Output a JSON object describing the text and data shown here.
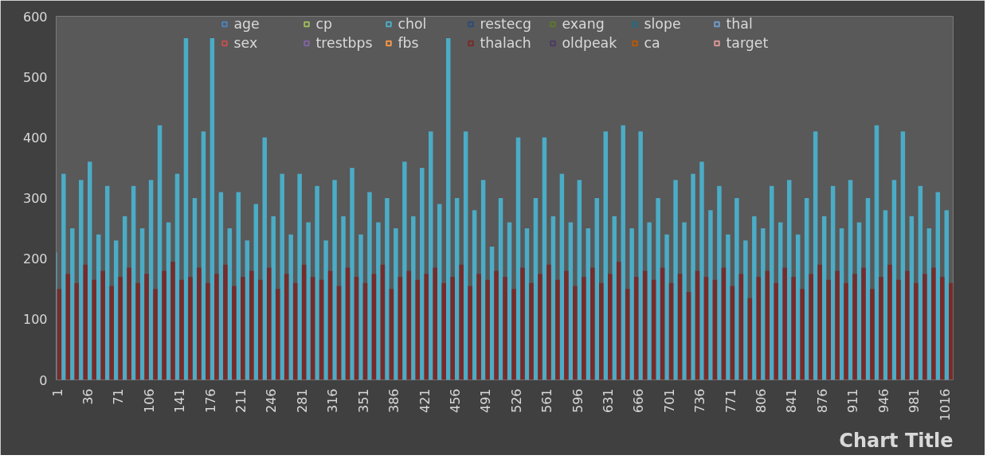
{
  "chart_data": {
    "type": "bar",
    "title": "Chart Title",
    "xlim": [
      0,
      1026
    ],
    "xticks": [
      1,
      36,
      71,
      106,
      141,
      176,
      211,
      246,
      281,
      316,
      351,
      386,
      421,
      456,
      491,
      526,
      561,
      596,
      631,
      666,
      701,
      736,
      771,
      806,
      841,
      876,
      911,
      946,
      981,
      1016
    ],
    "ylim": [
      0,
      600
    ],
    "yticks": [
      0,
      100,
      200,
      300,
      400,
      500,
      600
    ],
    "grid": false,
    "legend": "top",
    "series": [
      {
        "name": "age",
        "color": "#4f81bd"
      },
      {
        "name": "sex",
        "color": "#c0504d"
      },
      {
        "name": "cp",
        "color": "#9bbb59"
      },
      {
        "name": "trestbps",
        "color": "#8064a2"
      },
      {
        "name": "chol",
        "color": "#4bacc6",
        "x": [
          1,
          11,
          21,
          31,
          41,
          51,
          61,
          71,
          81,
          91,
          101,
          111,
          121,
          131,
          141,
          151,
          161,
          171,
          181,
          191,
          201,
          211,
          221,
          231,
          241,
          251,
          261,
          271,
          281,
          291,
          301,
          311,
          321,
          331,
          341,
          351,
          361,
          371,
          381,
          391,
          401,
          411,
          421,
          431,
          441,
          451,
          461,
          471,
          481,
          491,
          501,
          511,
          521,
          531,
          541,
          551,
          561,
          571,
          581,
          591,
          601,
          611,
          621,
          631,
          641,
          651,
          661,
          671,
          681,
          691,
          701,
          711,
          721,
          731,
          741,
          751,
          761,
          771,
          781,
          791,
          801,
          811,
          821,
          831,
          841,
          851,
          861,
          871,
          881,
          891,
          901,
          911,
          921,
          931,
          941,
          951,
          961,
          971,
          981,
          991,
          1001,
          1011,
          1021
        ],
        "values": [
          210,
          340,
          250,
          330,
          360,
          240,
          320,
          230,
          270,
          320,
          250,
          330,
          420,
          260,
          340,
          564,
          300,
          410,
          564,
          310,
          250,
          310,
          230,
          290,
          400,
          270,
          340,
          240,
          340,
          260,
          320,
          230,
          330,
          270,
          350,
          240,
          310,
          260,
          300,
          250,
          360,
          270,
          350,
          410,
          290,
          564,
          300,
          410,
          280,
          330,
          220,
          300,
          260,
          400,
          250,
          300,
          400,
          270,
          340,
          260,
          330,
          250,
          300,
          410,
          270,
          420,
          250,
          410,
          260,
          300,
          240,
          330,
          260,
          340,
          360,
          280,
          320,
          240,
          300,
          230,
          270,
          250,
          320,
          260,
          330,
          240,
          300,
          410,
          270,
          320,
          250,
          330,
          260,
          300,
          420,
          280,
          330,
          410,
          270,
          320,
          250,
          310,
          280
        ]
      },
      {
        "name": "fbs",
        "color": "#f79646"
      },
      {
        "name": "restecg",
        "color": "#2c4d75"
      },
      {
        "name": "thalach",
        "color": "#772c2a",
        "x": [
          1,
          11,
          21,
          31,
          41,
          51,
          61,
          71,
          81,
          91,
          101,
          111,
          121,
          131,
          141,
          151,
          161,
          171,
          181,
          191,
          201,
          211,
          221,
          231,
          241,
          251,
          261,
          271,
          281,
          291,
          301,
          311,
          321,
          331,
          341,
          351,
          361,
          371,
          381,
          391,
          401,
          411,
          421,
          431,
          441,
          451,
          461,
          471,
          481,
          491,
          501,
          511,
          521,
          531,
          541,
          551,
          561,
          571,
          581,
          591,
          601,
          611,
          621,
          631,
          641,
          651,
          661,
          671,
          681,
          691,
          701,
          711,
          721,
          731,
          741,
          751,
          761,
          771,
          781,
          791,
          801,
          811,
          821,
          831,
          841,
          851,
          861,
          871,
          881,
          891,
          901,
          911,
          921,
          931,
          941,
          951,
          961,
          971,
          981,
          991,
          1001,
          1011,
          1021
        ],
        "values": [
          150,
          175,
          160,
          190,
          165,
          180,
          155,
          170,
          185,
          160,
          175,
          150,
          180,
          195,
          165,
          170,
          185,
          160,
          175,
          190,
          155,
          170,
          180,
          165,
          185,
          150,
          175,
          160,
          190,
          170,
          165,
          180,
          155,
          185,
          170,
          160,
          175,
          190,
          150,
          170,
          180,
          165,
          175,
          185,
          160,
          170,
          190,
          155,
          175,
          165,
          180,
          170,
          150,
          185,
          160,
          175,
          190,
          165,
          180,
          155,
          170,
          185,
          160,
          175,
          195,
          150,
          170,
          180,
          165,
          185,
          160,
          175,
          145,
          180,
          170,
          165,
          185,
          155,
          175,
          135,
          170,
          180,
          160,
          185,
          170,
          150,
          175,
          190,
          165,
          180,
          160,
          175,
          185,
          150,
          170,
          190,
          165,
          180,
          160,
          175,
          185,
          170,
          160
        ]
      },
      {
        "name": "exang",
        "color": "#5f7530"
      },
      {
        "name": "oldpeak",
        "color": "#4d3b62"
      },
      {
        "name": "slope",
        "color": "#276a7c"
      },
      {
        "name": "ca",
        "color": "#b65708"
      },
      {
        "name": "thal",
        "color": "#729aca"
      },
      {
        "name": "target",
        "color": "#d99694"
      }
    ]
  }
}
